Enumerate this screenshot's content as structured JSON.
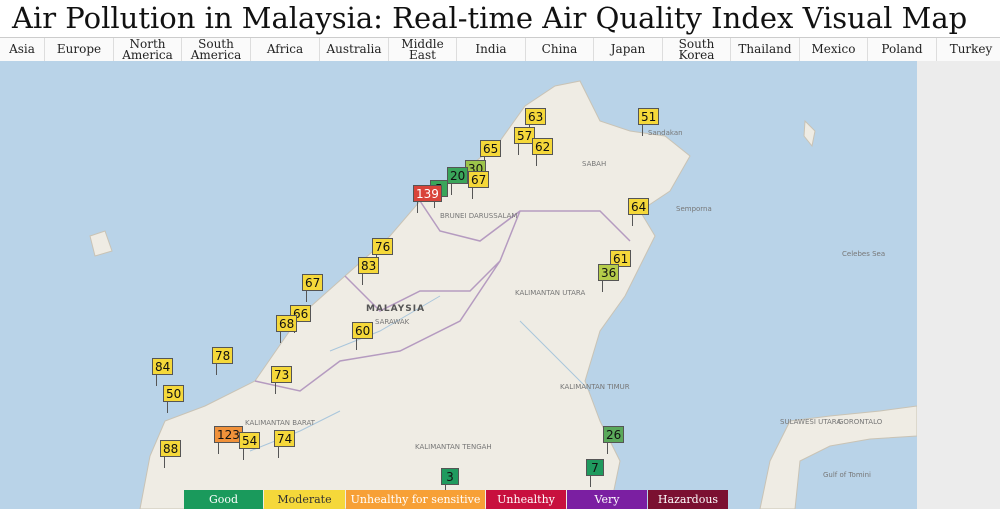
{
  "header": {
    "title": "Air Pollution in Malaysia: Real-time Air Quality Index Visual Map"
  },
  "nav": [
    "Asia",
    "Europe",
    "North America",
    "South America",
    "Africa",
    "Australia",
    "Middle East",
    "India",
    "China",
    "Japan",
    "South Korea",
    "Thailand",
    "Mexico",
    "Poland",
    "Turkey"
  ],
  "places": [
    "MALAYSIA",
    "SABAH",
    "SARAWAK",
    "BRUNEI DARUSSALAM",
    "KALIMANTAN UTARA",
    "KALIMANTAN TIMUR",
    "KALIMANTAN BARAT",
    "KALIMANTAN TENGAH",
    "Celebes Sea",
    "SULAWESI UTARA",
    "GORONTALO",
    "Gulf of Tomini",
    "Sandakan",
    "Semporna"
  ],
  "markers": [
    {
      "value": 63,
      "color": "#f5d83a"
    },
    {
      "value": 51,
      "color": "#f5d83a"
    },
    {
      "value": 57,
      "color": "#f5d83a"
    },
    {
      "value": 62,
      "color": "#f5d83a"
    },
    {
      "value": 65,
      "color": "#f5d83a"
    },
    {
      "value": 30,
      "color": "#9cc44a"
    },
    {
      "value": 20,
      "color": "#3aa55a"
    },
    {
      "value": 5,
      "color": "#3aa55a"
    },
    {
      "value": 139,
      "color": "#d9443a"
    },
    {
      "value": 67,
      "color": "#f5d83a"
    },
    {
      "value": 64,
      "color": "#f5d83a"
    },
    {
      "value": 76,
      "color": "#f5d83a"
    },
    {
      "value": 61,
      "color": "#f5d83a"
    },
    {
      "value": 83,
      "color": "#f5d83a"
    },
    {
      "value": 36,
      "color": "#b5cc4a"
    },
    {
      "value": 67,
      "color": "#f5d83a"
    },
    {
      "value": 66,
      "color": "#f5d83a"
    },
    {
      "value": 68,
      "color": "#f5d83a"
    },
    {
      "value": 60,
      "color": "#f5d83a"
    },
    {
      "value": 84,
      "color": "#f5d83a"
    },
    {
      "value": 78,
      "color": "#f5d83a"
    },
    {
      "value": 73,
      "color": "#f5d83a"
    },
    {
      "value": 50,
      "color": "#f5d83a"
    },
    {
      "value": 123,
      "color": "#f0913a"
    },
    {
      "value": 54,
      "color": "#f5d83a"
    },
    {
      "value": 74,
      "color": "#f5d83a"
    },
    {
      "value": 88,
      "color": "#f5d83a"
    },
    {
      "value": 26,
      "color": "#5aa85a"
    },
    {
      "value": 7,
      "color": "#1f9a5e"
    },
    {
      "value": 3,
      "color": "#1f9a5e"
    }
  ],
  "legend": [
    {
      "label": "Good",
      "color": "#1a9a5c",
      "text": "#ffffff"
    },
    {
      "label": "Moderate",
      "color": "#f5d83a",
      "text": "#333333"
    },
    {
      "label": "Unhealthy for sensitive groups",
      "color": "#f7a036",
      "text": "#ffffff"
    },
    {
      "label": "Unhealthy",
      "color": "#c8103e",
      "text": "#ffffff"
    },
    {
      "label": "Very Unhealthy",
      "color": "#7b1fa2",
      "text": "#ffffff"
    },
    {
      "label": "Hazardous",
      "color": "#7b1031",
      "text": "#ffffff"
    }
  ]
}
